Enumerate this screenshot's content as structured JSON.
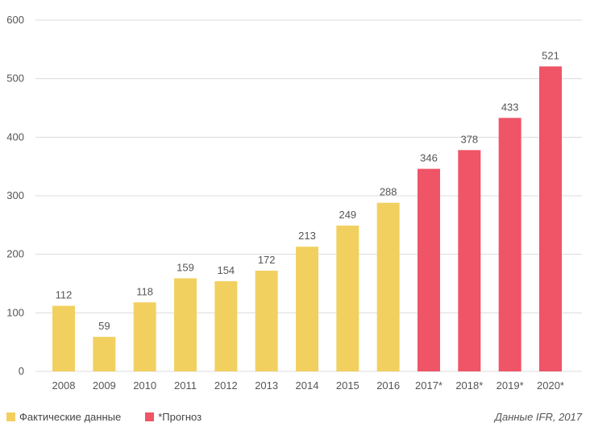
{
  "chart_data": {
    "type": "bar",
    "title": "",
    "xlabel": "",
    "ylabel": "",
    "ylim": [
      0,
      600
    ],
    "yticks": [
      0,
      100,
      200,
      300,
      400,
      500,
      600
    ],
    "grid": true,
    "categories": [
      "2008",
      "2009",
      "2010",
      "2011",
      "2012",
      "2013",
      "2014",
      "2015",
      "2016",
      "2017*",
      "2018*",
      "2019*",
      "2020*"
    ],
    "values": [
      112,
      59,
      118,
      159,
      154,
      172,
      213,
      249,
      288,
      346,
      378,
      433,
      521
    ],
    "series_membership": [
      "actual",
      "actual",
      "actual",
      "actual",
      "actual",
      "actual",
      "actual",
      "actual",
      "actual",
      "forecast",
      "forecast",
      "forecast",
      "forecast"
    ],
    "series": [
      {
        "key": "actual",
        "name": "Фактические данные",
        "color": "#F2D060"
      },
      {
        "key": "forecast",
        "name": "*Прогноз",
        "color": "#EF5467"
      }
    ],
    "legend_position": "bottom-left"
  },
  "source_note": "Данные IFR, 2017"
}
